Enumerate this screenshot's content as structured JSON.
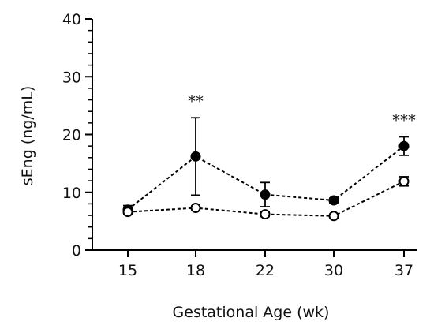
{
  "chart_data": {
    "type": "line",
    "xlabel": "Gestational Age (wk)",
    "ylabel": "sEng (ng/mL)",
    "ylim": [
      0,
      40
    ],
    "y_ticks": [
      "0",
      "10",
      "20",
      "30",
      "40"
    ],
    "categories": [
      "15",
      "18",
      "22",
      "30",
      "37"
    ],
    "series": [
      {
        "marker": "filled-circle",
        "color": "#000000",
        "line_style": "dashed",
        "values": [
          7.0,
          16.2,
          9.6,
          8.6,
          18.0
        ],
        "errors": [
          0.7,
          6.7,
          2.1,
          0.4,
          1.6
        ]
      },
      {
        "marker": "open-circle",
        "color": "#000000",
        "line_style": "dashed",
        "values": [
          6.6,
          7.3,
          6.2,
          5.9,
          11.9
        ],
        "errors": [
          0.3,
          0.3,
          0.4,
          0.3,
          0.8
        ]
      }
    ],
    "annotations": [
      {
        "category": "18",
        "text": "**"
      },
      {
        "category": "37",
        "text": "***"
      }
    ]
  }
}
